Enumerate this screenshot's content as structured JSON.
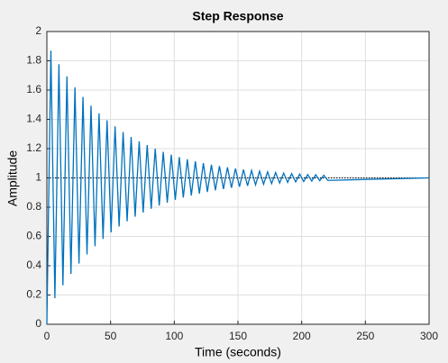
{
  "chart_data": {
    "type": "line",
    "title": "Step Response",
    "x_label": "Time (seconds)",
    "y_label": "Amplitude",
    "x": [
      0,
      3.15,
      6.3,
      9.45,
      12.6,
      15.75,
      18.9,
      22.05,
      25.2,
      28.35,
      31.5,
      34.65,
      37.8,
      40.95,
      44.1,
      47.25,
      50.4,
      53.55,
      56.7,
      59.85,
      63,
      66.15,
      69.3,
      72.45,
      75.6,
      78.75,
      81.9,
      85.05,
      88.2,
      91.35,
      94.5,
      97.65,
      100.8,
      103.95,
      107.1,
      110.25,
      113.4,
      116.55,
      119.7,
      122.85,
      126,
      129.15,
      132.3,
      135.45,
      138.6,
      141.75,
      144.9,
      148.05,
      151.2,
      154.35,
      157.5,
      160.65,
      163.8,
      166.95,
      170.1,
      173.25,
      176.4,
      179.55,
      182.7,
      185.85,
      189,
      192.15,
      195.3,
      198.45,
      201.6,
      204.75,
      207.9,
      211.05,
      214.2,
      217.35,
      220.5,
      300
    ],
    "values": [
      0,
      1.87,
      0.178,
      1.777,
      0.266,
      1.694,
      0.344,
      1.619,
      0.415,
      1.553,
      0.477,
      1.494,
      0.533,
      1.441,
      0.583,
      1.394,
      0.628,
      1.352,
      0.668,
      1.314,
      0.703,
      1.28,
      0.735,
      1.25,
      0.763,
      1.224,
      0.789,
      1.2,
      0.811,
      1.178,
      0.831,
      1.159,
      0.85,
      1.142,
      0.866,
      1.127,
      0.88,
      1.113,
      0.893,
      1.101,
      0.904,
      1.09,
      0.915,
      1.081,
      0.924,
      1.072,
      0.932,
      1.064,
      0.939,
      1.057,
      0.946,
      1.051,
      0.952,
      1.046,
      0.957,
      1.041,
      0.961,
      1.037,
      0.965,
      1.033,
      0.969,
      1.029,
      0.973,
      1.026,
      0.975,
      1.023,
      0.978,
      1.021,
      0.981,
      1.018,
      0.983,
      1
    ],
    "color": "#0072bd",
    "reference_line": 1,
    "xlim": [
      0,
      300
    ],
    "xticks": [
      0,
      50,
      100,
      150,
      200,
      250,
      300
    ],
    "ylim": [
      0,
      2
    ],
    "yticks": [
      0,
      0.2,
      0.4,
      0.6,
      0.8,
      1,
      1.2,
      1.4,
      1.6,
      1.8,
      2
    ],
    "grid": true
  }
}
